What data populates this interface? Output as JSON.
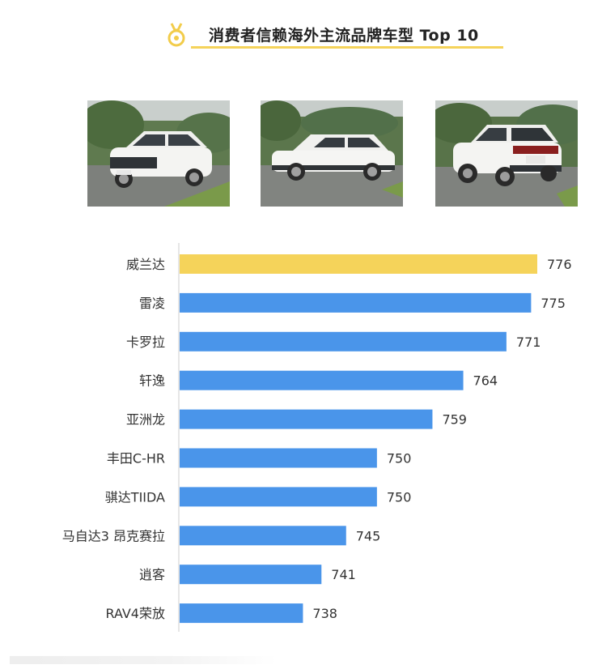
{
  "page": {
    "title": "消费者信赖海外主流品牌车型 Top 10"
  },
  "icons": {
    "title_icon": "medal-icon"
  },
  "colors": {
    "highlight_bar": "#f5d35a",
    "normal_bar": "#4a95ea",
    "title_underline": "#f5d35a",
    "axis_line": "#cccccc"
  },
  "photos": [
    {
      "subject": "white-suv-front-view"
    },
    {
      "subject": "white-suv-side-view"
    },
    {
      "subject": "white-suv-rear-view"
    }
  ],
  "chart_data": {
    "type": "bar",
    "orientation": "horizontal",
    "categories": [
      "威兰达",
      "雷凌",
      "卡罗拉",
      "轩逸",
      "亚洲龙",
      "丰田C-HR",
      "骐达TIIDA",
      "马自达3 昂克赛拉",
      "逍客",
      "RAV4荣放"
    ],
    "values": [
      776,
      775,
      771,
      764,
      759,
      750,
      750,
      745,
      741,
      738
    ],
    "data_labels": [
      "776",
      "775",
      "771",
      "764",
      "759",
      "750",
      "750",
      "745",
      "741",
      "738"
    ],
    "highlight_index": 0,
    "xlim": [
      718,
      776
    ],
    "grid": false,
    "legend": "none",
    "title": "",
    "xlabel": "",
    "ylabel": ""
  }
}
